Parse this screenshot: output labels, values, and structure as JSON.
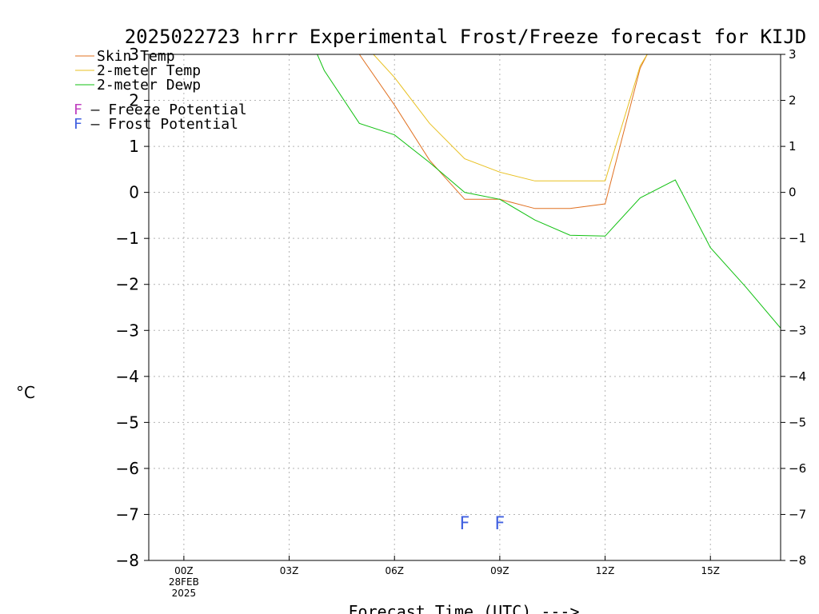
{
  "chart_data": {
    "type": "line",
    "title": "2025022723 hrrr Experimental Frost/Freeze forecast for KIJD",
    "ylabel": "°C",
    "xlabel": "Forecast Time (UTC) --->",
    "ylim": [
      -8,
      3
    ],
    "xlim": [
      -1,
      17
    ],
    "y_ticks": [
      -8,
      -7,
      -6,
      -5,
      -4,
      -3,
      -2,
      -1,
      0,
      1,
      2,
      3
    ],
    "y_tick_labels": [
      "−8",
      "−7",
      "−6",
      "−5",
      "−4",
      "−3",
      "−2",
      "−1",
      "0",
      "1",
      "2",
      "3"
    ],
    "x_ticks": [
      0,
      3,
      6,
      9,
      12,
      15
    ],
    "x_tick_labels": [
      "00Z",
      "03Z",
      "06Z",
      "09Z",
      "12Z",
      "15Z"
    ],
    "x_date_label": [
      "28FEB",
      "2025"
    ],
    "grid": true,
    "legend_position": "top-left",
    "series": [
      {
        "name": "Skin Temp",
        "color": "#e07020",
        "x": [
          5,
          6,
          7,
          8,
          9,
          10,
          11,
          12,
          13,
          13.2
        ],
        "y": [
          3.0,
          1.9,
          0.7,
          -0.15,
          -0.15,
          -0.35,
          -0.35,
          -0.25,
          2.7,
          3.0
        ]
      },
      {
        "name": "2-meter Temp",
        "color": "#e8c020",
        "x": [
          5.4,
          6,
          7,
          8,
          9,
          10,
          11,
          12,
          13,
          13.2
        ],
        "y": [
          3.0,
          2.5,
          1.5,
          0.73,
          0.44,
          0.25,
          0.25,
          0.25,
          2.75,
          3.0
        ]
      },
      {
        "name": "2-meter Dewp",
        "color": "#10c010",
        "x": [
          3.8,
          4,
          5,
          6,
          7,
          8,
          9,
          10,
          11,
          12,
          13,
          14,
          15,
          16,
          17
        ],
        "y": [
          3.0,
          2.65,
          1.5,
          1.25,
          0.65,
          0.0,
          -0.15,
          -0.6,
          -0.93,
          -0.95,
          -0.12,
          0.27,
          -1.2,
          -2.05,
          -2.95
        ]
      }
    ],
    "potential_legend": [
      {
        "marker": "F",
        "label": " – Freeze Potential",
        "color": "#c040c0"
      },
      {
        "marker": "F",
        "label": " – Frost Potential",
        "color": "#4060e0"
      }
    ],
    "annotations": [
      {
        "text": "F",
        "x": 8,
        "y": -7.15,
        "color": "#4060e0"
      },
      {
        "text": "F",
        "x": 9,
        "y": -7.15,
        "color": "#4060e0"
      }
    ]
  }
}
